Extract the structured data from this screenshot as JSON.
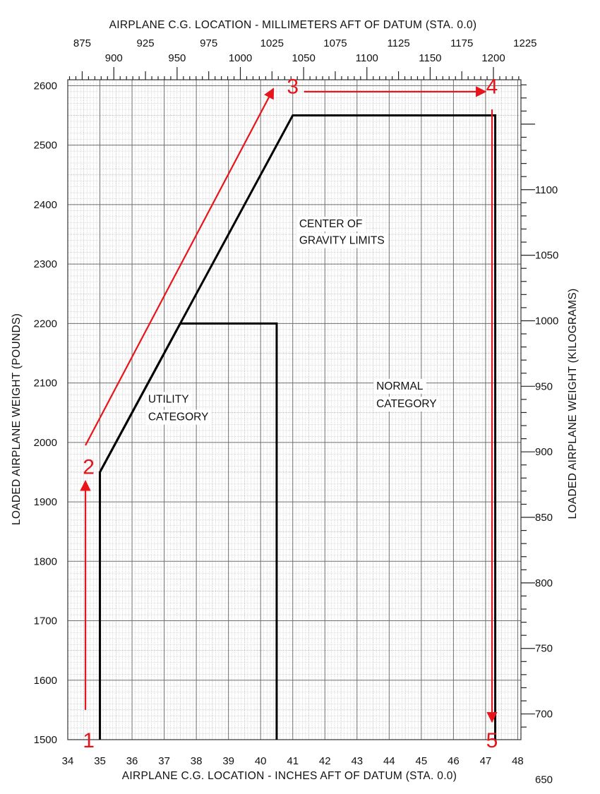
{
  "chart_data": {
    "type": "line",
    "title": "",
    "xlabel": "AIRPLANE C.G. LOCATION - INCHES AFT OF DATUM (STA. 0.0)",
    "ylabel": "LOADED AIRPLANE WEIGHT (POUNDS)",
    "x2label": "AIRPLANE C.G. LOCATION - MILLIMETERS AFT OF DATUM (STA. 0.0)",
    "y2label": "LOADED AIRPLANE WEIGHT (KILOGRAMS)",
    "xlim": [
      34,
      48.1
    ],
    "ylim": [
      1500,
      2610
    ],
    "grid": true,
    "x_ticks": [
      34,
      35,
      36,
      37,
      38,
      39,
      40,
      41,
      42,
      43,
      44,
      45,
      46,
      47,
      48
    ],
    "y_ticks": [
      1500,
      1600,
      1700,
      1800,
      1900,
      2000,
      2100,
      2200,
      2300,
      2400,
      2500,
      2600
    ],
    "x2_ticks_upper": [
      875,
      925,
      975,
      1025,
      1075,
      1125,
      1175,
      1225
    ],
    "x2_ticks_lower": [
      900,
      950,
      1000,
      1050,
      1100,
      1150,
      1200
    ],
    "y2_ticks": [
      650,
      700,
      750,
      800,
      850,
      900,
      950,
      1000,
      1050,
      1100
    ],
    "series": [
      {
        "name": "NORMAL CATEGORY",
        "x": [
          35.0,
          35.0,
          41.0,
          47.3,
          47.3
        ],
        "y": [
          1500,
          1950,
          2550,
          2550,
          1500
        ]
      },
      {
        "name": "UTILITY CATEGORY",
        "x": [
          35.0,
          35.0,
          37.5,
          40.5,
          40.5
        ],
        "y": [
          1500,
          1950,
          2200,
          2200,
          1500
        ]
      }
    ],
    "annotations": [
      {
        "text": "CENTER OF",
        "x": 41.2,
        "y": 2362
      },
      {
        "text": "GRAVITY LIMITS",
        "x": 41.2,
        "y": 2334
      },
      {
        "text": "UTILITY",
        "x": 36.5,
        "y": 2067
      },
      {
        "text": "CATEGORY",
        "x": 36.5,
        "y": 2037
      },
      {
        "text": "NORMAL",
        "x": 43.6,
        "y": 2089
      },
      {
        "text": "CATEGORY",
        "x": 43.6,
        "y": 2059
      }
    ],
    "markers": [
      {
        "label": "1",
        "x": 34.65,
        "y": 1500
      },
      {
        "label": "2",
        "x": 34.65,
        "y": 1960
      },
      {
        "label": "3",
        "x": 41.0,
        "y": 2600
      },
      {
        "label": "4",
        "x": 47.2,
        "y": 2600
      },
      {
        "label": "5",
        "x": 47.2,
        "y": 1500
      }
    ],
    "arrows": [
      {
        "from": [
          34.55,
          1550
        ],
        "to": [
          34.55,
          1935
        ]
      },
      {
        "from": [
          34.55,
          1995
        ],
        "to": [
          40.4,
          2595
        ]
      },
      {
        "from": [
          41.35,
          2590
        ],
        "to": [
          47.0,
          2590
        ]
      },
      {
        "from": [
          47.2,
          2560
        ],
        "to": [
          47.2,
          1530
        ]
      }
    ],
    "colors": {
      "line": "#000000",
      "grid": "#8e8e8e",
      "marker": "#e8141c",
      "background": "#ffffff"
    }
  }
}
